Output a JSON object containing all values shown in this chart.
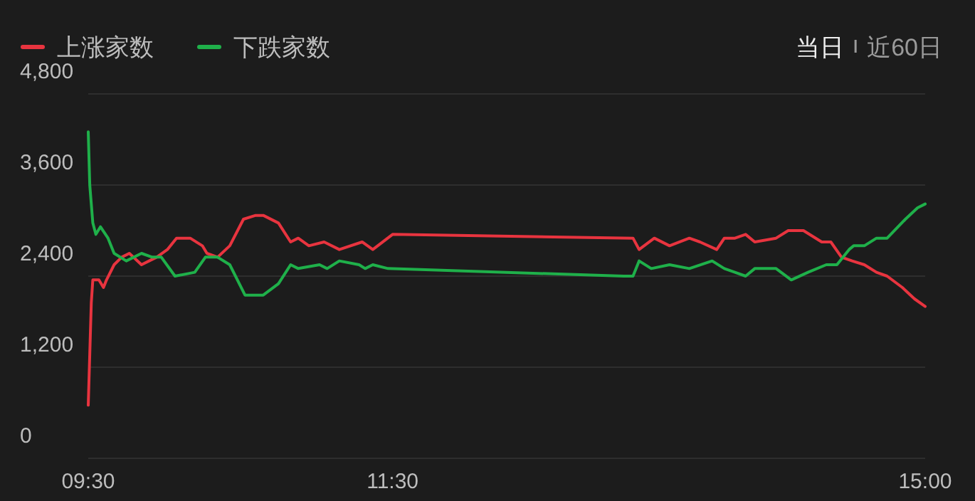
{
  "chart_data": {
    "type": "line",
    "series": [
      {
        "name": "上涨家数",
        "color": "#e8343f",
        "x": [
          9.5,
          9.52,
          9.53,
          9.57,
          9.6,
          9.62,
          9.67,
          9.72,
          9.77,
          9.85,
          9.9,
          9.95,
          10.02,
          10.08,
          10.17,
          10.25,
          10.28,
          10.35,
          10.43,
          10.52,
          10.6,
          10.65,
          10.75,
          10.83,
          10.88,
          10.95,
          11.05,
          11.15,
          11.3,
          11.37,
          11.5,
          13.08,
          13.12,
          13.22,
          13.32,
          13.45,
          13.52,
          13.63,
          13.68,
          13.75,
          13.82,
          13.88,
          14.02,
          14.1,
          14.2,
          14.32,
          14.38,
          14.45,
          14.52,
          14.6,
          14.68,
          14.75,
          14.85,
          14.93,
          15.0
        ],
        "values": [
          700,
          2050,
          2350,
          2350,
          2250,
          2350,
          2550,
          2650,
          2700,
          2550,
          2600,
          2650,
          2750,
          2900,
          2900,
          2800,
          2700,
          2650,
          2800,
          3150,
          3200,
          3200,
          3100,
          2850,
          2900,
          2800,
          2850,
          2750,
          2850,
          2750,
          2950,
          2900,
          2750,
          2900,
          2800,
          2900,
          2850,
          2750,
          2900,
          2900,
          2950,
          2850,
          2900,
          3000,
          3000,
          2850,
          2850,
          2650,
          2600,
          2550,
          2450,
          2400,
          2250,
          2100,
          2000
        ]
      },
      {
        "name": "下跌家数",
        "color": "#1fb04a",
        "x": [
          9.5,
          9.51,
          9.53,
          9.55,
          9.58,
          9.63,
          9.67,
          9.75,
          9.85,
          9.92,
          9.98,
          10.07,
          10.2,
          10.27,
          10.35,
          10.43,
          10.53,
          10.65,
          10.75,
          10.83,
          10.88,
          11.02,
          11.07,
          11.15,
          11.28,
          11.32,
          11.37,
          11.47,
          13.02,
          13.08,
          13.12,
          13.2,
          13.32,
          13.45,
          13.6,
          13.68,
          13.75,
          13.82,
          13.88,
          14.02,
          14.12,
          14.23,
          14.35,
          14.42,
          14.5,
          14.53,
          14.6,
          14.68,
          14.75,
          14.87,
          14.95,
          15.0
        ],
        "values": [
          4300,
          3600,
          3100,
          2950,
          3050,
          2900,
          2700,
          2600,
          2700,
          2650,
          2650,
          2400,
          2450,
          2650,
          2650,
          2550,
          2150,
          2150,
          2300,
          2550,
          2500,
          2550,
          2500,
          2600,
          2550,
          2500,
          2550,
          2500,
          2400,
          2400,
          2600,
          2500,
          2550,
          2500,
          2600,
          2500,
          2450,
          2400,
          2500,
          2500,
          2350,
          2450,
          2550,
          2550,
          2750,
          2800,
          2800,
          2900,
          2900,
          3150,
          3300,
          3350
        ]
      }
    ],
    "xlim": [
      9.5,
      15
    ],
    "xticks": [
      {
        "value": 9.5,
        "label": "09:30"
      },
      {
        "value": 11.5,
        "label": "11:30"
      },
      {
        "value": 15,
        "label": "15:00"
      }
    ],
    "ylim": [
      0,
      4800
    ],
    "yticks": [
      {
        "value": 0,
        "label": "0"
      },
      {
        "value": 1200,
        "label": "1,200"
      },
      {
        "value": 2400,
        "label": "2,400"
      },
      {
        "value": 3600,
        "label": "3,600"
      },
      {
        "value": 4800,
        "label": "4,800"
      }
    ],
    "grid": "y",
    "legend": "top left",
    "line_style": "solid",
    "annotations": [
      "当日",
      "近60日"
    ]
  }
}
